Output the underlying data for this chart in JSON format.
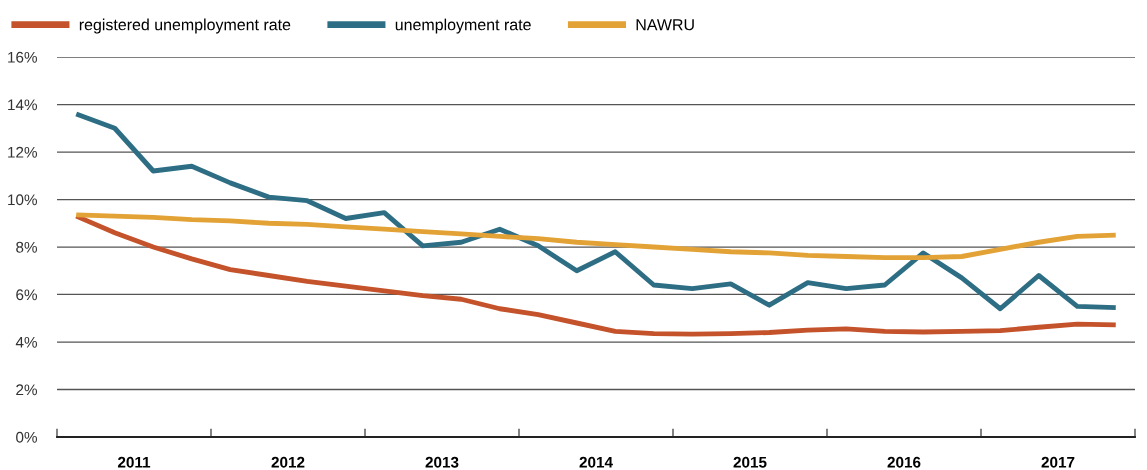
{
  "chart_data": {
    "type": "line",
    "x": [
      2011.125,
      2011.375,
      2011.625,
      2011.875,
      2012.125,
      2012.375,
      2012.625,
      2012.875,
      2013.125,
      2013.375,
      2013.625,
      2013.875,
      2014.125,
      2014.375,
      2014.625,
      2014.875,
      2015.125,
      2015.375,
      2015.625,
      2015.875,
      2016.125,
      2016.375,
      2016.625,
      2016.875,
      2017.125,
      2017.375,
      2017.625,
      2017.875
    ],
    "series": [
      {
        "name": "registered unemployment rate",
        "color": "#c4522a",
        "values": [
          9.3,
          8.6,
          8.0,
          7.5,
          7.05,
          6.8,
          6.55,
          6.35,
          6.15,
          5.95,
          5.8,
          5.4,
          5.15,
          4.8,
          4.45,
          4.35,
          4.33,
          4.35,
          4.4,
          4.5,
          4.55,
          4.45,
          4.42,
          4.45,
          4.48,
          4.62,
          4.75,
          4.72
        ]
      },
      {
        "name": "unemployment rate",
        "color": "#2e6e85",
        "values": [
          13.6,
          13.0,
          11.2,
          11.4,
          10.7,
          10.1,
          9.95,
          9.2,
          9.45,
          8.05,
          8.2,
          8.75,
          8.05,
          7.0,
          7.8,
          6.4,
          6.25,
          6.45,
          5.55,
          6.5,
          6.25,
          6.4,
          7.75,
          6.7,
          5.4,
          6.8,
          5.5,
          5.45
        ]
      },
      {
        "name": "NAWRU",
        "color": "#e3a235",
        "values": [
          9.35,
          9.3,
          9.25,
          9.15,
          9.1,
          9.0,
          8.95,
          8.85,
          8.75,
          8.65,
          8.55,
          8.45,
          8.35,
          8.2,
          8.1,
          8.0,
          7.9,
          7.8,
          7.75,
          7.65,
          7.6,
          7.55,
          7.55,
          7.6,
          7.9,
          8.2,
          8.45,
          8.5
        ]
      }
    ],
    "xlim": [
      2011,
      2018
    ],
    "xticks": [
      {
        "value": 2011,
        "label": null
      },
      {
        "value": 2011.5,
        "label": "2011"
      },
      {
        "value": 2012,
        "label": null
      },
      {
        "value": 2012.5,
        "label": "2012"
      },
      {
        "value": 2013,
        "label": null
      },
      {
        "value": 2013.5,
        "label": "2013"
      },
      {
        "value": 2014,
        "label": null
      },
      {
        "value": 2014.5,
        "label": "2014"
      },
      {
        "value": 2015,
        "label": null
      },
      {
        "value": 2015.5,
        "label": "2015"
      },
      {
        "value": 2016,
        "label": null
      },
      {
        "value": 2016.5,
        "label": "2016"
      },
      {
        "value": 2017,
        "label": null
      },
      {
        "value": 2017.5,
        "label": "2017"
      },
      {
        "value": 2018,
        "label": null
      }
    ],
    "ylim": [
      0,
      16
    ],
    "yticks": [
      {
        "value": 0,
        "label": "0%"
      },
      {
        "value": 2,
        "label": "2%"
      },
      {
        "value": 4,
        "label": "4%"
      },
      {
        "value": 6,
        "label": "6%"
      },
      {
        "value": 8,
        "label": "8%"
      },
      {
        "value": 10,
        "label": "10%"
      },
      {
        "value": 12,
        "label": "12%"
      },
      {
        "value": 14,
        "label": "14%"
      },
      {
        "value": 16,
        "label": "16%"
      }
    ],
    "grid": "y",
    "legend": "top left",
    "marker": "none",
    "line_style": "solid"
  }
}
